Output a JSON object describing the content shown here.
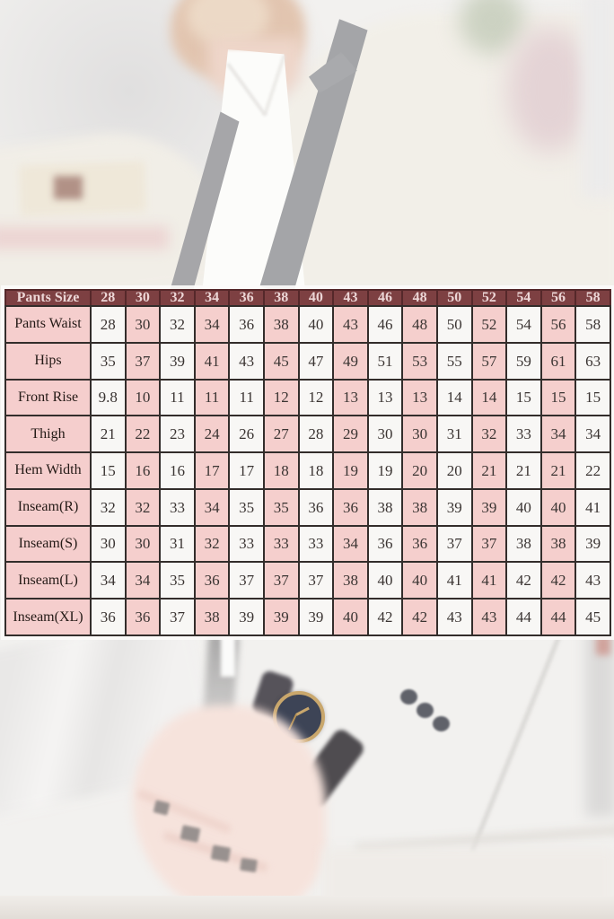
{
  "chart_data": {
    "type": "table",
    "corner_label": "Pants Size",
    "columns": [
      "28",
      "30",
      "32",
      "34",
      "36",
      "38",
      "40",
      "43",
      "46",
      "48",
      "50",
      "52",
      "54",
      "56",
      "58"
    ],
    "rows": [
      {
        "label": "Pants Waist",
        "values": [
          "28",
          "30",
          "32",
          "34",
          "36",
          "38",
          "40",
          "43",
          "46",
          "48",
          "50",
          "52",
          "54",
          "56",
          "58"
        ]
      },
      {
        "label": "Hips",
        "values": [
          "35",
          "37",
          "39",
          "41",
          "43",
          "45",
          "47",
          "49",
          "51",
          "53",
          "55",
          "57",
          "59",
          "61",
          "63"
        ]
      },
      {
        "label": "Front Rise",
        "values": [
          "9.8",
          "10",
          "11",
          "11",
          "11",
          "12",
          "12",
          "13",
          "13",
          "13",
          "14",
          "14",
          "15",
          "15",
          "15"
        ]
      },
      {
        "label": "Thigh",
        "values": [
          "21",
          "22",
          "23",
          "24",
          "26",
          "27",
          "28",
          "29",
          "30",
          "30",
          "31",
          "32",
          "33",
          "34",
          "34"
        ]
      },
      {
        "label": "Hem Width",
        "values": [
          "15",
          "16",
          "16",
          "17",
          "17",
          "18",
          "18",
          "19",
          "19",
          "20",
          "20",
          "21",
          "21",
          "21",
          "22"
        ]
      },
      {
        "label": "Inseam(R)",
        "values": [
          "32",
          "32",
          "33",
          "34",
          "35",
          "35",
          "36",
          "36",
          "38",
          "38",
          "39",
          "39",
          "40",
          "40",
          "41"
        ]
      },
      {
        "label": "Inseam(S)",
        "values": [
          "30",
          "30",
          "31",
          "32",
          "33",
          "33",
          "33",
          "34",
          "36",
          "36",
          "37",
          "37",
          "38",
          "38",
          "39"
        ]
      },
      {
        "label": "Inseam(L)",
        "values": [
          "34",
          "34",
          "35",
          "36",
          "37",
          "37",
          "37",
          "38",
          "40",
          "40",
          "41",
          "41",
          "42",
          "42",
          "43"
        ]
      },
      {
        "label": "Inseam(XL)",
        "values": [
          "36",
          "36",
          "37",
          "38",
          "39",
          "39",
          "39",
          "40",
          "42",
          "42",
          "43",
          "43",
          "44",
          "44",
          "45"
        ]
      }
    ],
    "layout": {
      "grid": true,
      "column_shading": "alternating white/pink starting white",
      "header_position": "top row"
    }
  },
  "colors": {
    "header_bg": "#7d4042",
    "header_text": "#ecd6d6",
    "pink_cell": "#f5cfcd",
    "light_cell": "#f8f7f5",
    "label_cell": "#f5cecd",
    "border": "#332d2b",
    "cell_text": "#3a3432"
  }
}
